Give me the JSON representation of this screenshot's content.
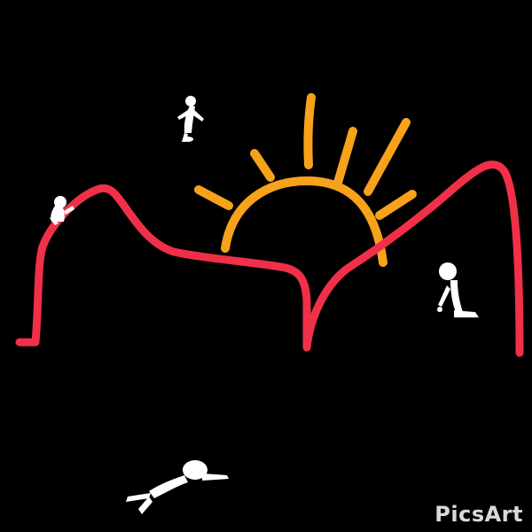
{
  "image": {
    "background_color": "#000000",
    "colors": {
      "mountains": "#f03048",
      "sun": "#f7a21b",
      "figures": "#ffffff"
    },
    "icons": {
      "mountain_outline": "mountain-ridge",
      "sun": "setting-sun",
      "figure_standing": "stick-figure-standing",
      "figure_crouching": "stick-figure-crouching",
      "figure_kneeling": "stick-figure-kneeling",
      "figure_lying": "stick-figure-lying"
    }
  },
  "watermark": {
    "text": "PicsArt"
  }
}
